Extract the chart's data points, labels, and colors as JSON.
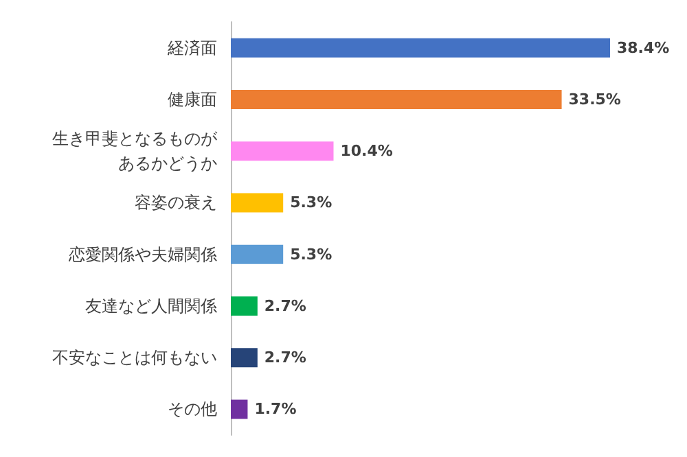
{
  "chart_data": {
    "type": "bar",
    "orientation": "horizontal",
    "categories": [
      "経済面",
      "健康面",
      "生き甲斐となるものがあるかどうか",
      "容姿の衰え",
      "恋愛関係や夫婦関係",
      "友達など人間関係",
      "不安なことは何もない",
      "その他"
    ],
    "values": [
      38.4,
      33.5,
      10.4,
      5.3,
      5.3,
      2.7,
      2.7,
      1.7
    ],
    "colors": [
      "#4472c4",
      "#ed7d31",
      "#ff88f0",
      "#ffc000",
      "#5b9bd5",
      "#00b050",
      "#264478",
      "#7030a0"
    ],
    "value_labels": [
      "38.4%",
      "33.5%",
      "10.4%",
      "5.3%",
      "5.3%",
      "2.7%",
      "2.7%",
      "1.7%"
    ]
  }
}
